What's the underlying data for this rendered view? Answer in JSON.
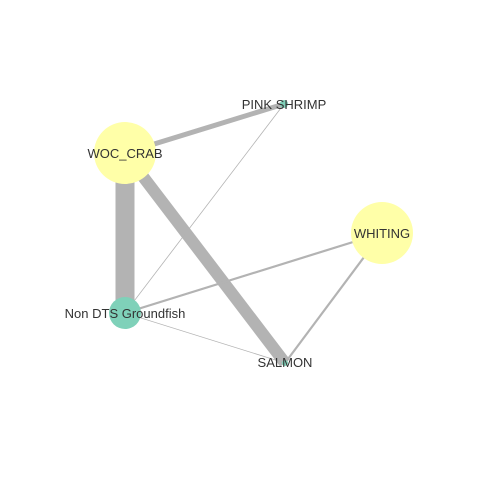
{
  "network": {
    "nodes": [
      {
        "id": "pink_shrimp",
        "label": "PINK SHRIMP",
        "size": "small",
        "color": "#7fd1b9"
      },
      {
        "id": "woc_crab",
        "label": "WOC_CRAB",
        "size": "large",
        "color": "#ffffa8"
      },
      {
        "id": "whiting",
        "label": "WHITING",
        "size": "large",
        "color": "#ffffa8"
      },
      {
        "id": "non_dts",
        "label": "Non DTS Groundfish",
        "size": "medium",
        "color": "#7fd1b9"
      },
      {
        "id": "salmon",
        "label": "SALMON",
        "size": "small",
        "color": "#7fd1b9"
      }
    ],
    "edges": [
      {
        "source": "woc_crab",
        "target": "non_dts",
        "weight": "very-heavy"
      },
      {
        "source": "woc_crab",
        "target": "salmon",
        "weight": "heavy"
      },
      {
        "source": "woc_crab",
        "target": "pink_shrimp",
        "weight": "medium"
      },
      {
        "source": "non_dts",
        "target": "whiting",
        "weight": "light"
      },
      {
        "source": "whiting",
        "target": "salmon",
        "weight": "light"
      },
      {
        "source": "pink_shrimp",
        "target": "non_dts",
        "weight": "thin"
      },
      {
        "source": "non_dts",
        "target": "salmon",
        "weight": "thin"
      }
    ],
    "edge_color": "#b3b3b3"
  }
}
